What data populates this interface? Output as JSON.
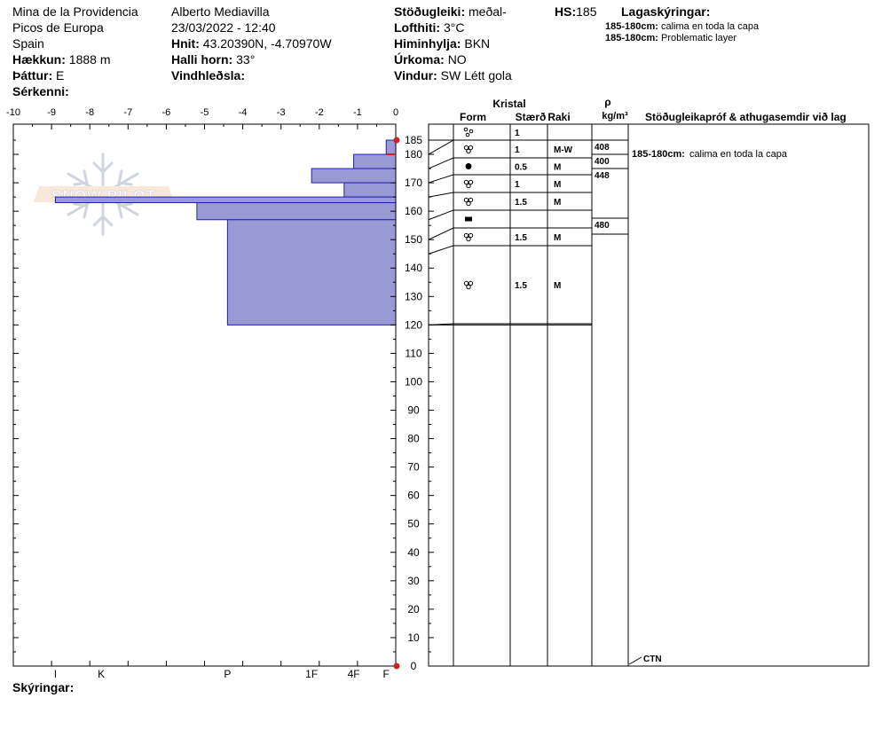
{
  "header": {
    "location": "Mina de la Providencia",
    "range": "Picos de Europa",
    "country": "Spain",
    "elevation_label": "Hækkun:",
    "elevation_value": "1888 m",
    "aspect_label": "Þáttur:",
    "aspect_value": "E",
    "features_label": "Sérkenni:",
    "observer": "Alberto Mediavilla",
    "datetime": "23/03/2022 - 12:40",
    "coords_label": "Hnit:",
    "coords_value": "43.20390N, -4.70970W",
    "slope_label": "Halli horn:",
    "slope_value": "33°",
    "wind_loading_label": "Vindhleðsla:",
    "stability_label": "Stöðugleiki:",
    "stability_value": "meðal-",
    "air_temp_label": "Lofthiti:",
    "air_temp_value": "3°C",
    "sky_label": "Himinhylja:",
    "sky_value": "BKN",
    "precip_label": "Úrkoma:",
    "precip_value": "NO",
    "wind_label": "Vindur:",
    "wind_value": "SW Létt gola",
    "hs_label": "HS:",
    "hs_value": "185",
    "layer_notes_title": "Lagaskýringar:",
    "layer_notes": [
      {
        "range": "185-180cm:",
        "text": "calima en toda la capa"
      },
      {
        "range": "185-180cm:",
        "text": "Problematic layer"
      }
    ]
  },
  "footer": {
    "comments_label": "Skýringar:"
  },
  "watermark": "SNOW PILOT",
  "table_headers": {
    "kristal": "Kristal",
    "form": "Form",
    "size": "Stærð",
    "moisture": "Raki",
    "rho": "ρ",
    "density_unit": "kg/m³",
    "tests": "Stöðugleikapróf & athugasemdir við lag"
  },
  "ctn_label": "CTN",
  "test_note": {
    "range": "185-180cm:",
    "text": "calima en toda la capa"
  },
  "chart_data": {
    "type": "bar",
    "temp_axis": {
      "ticks": [
        -10,
        -9,
        -8,
        -7,
        -6,
        -5,
        -4,
        -3,
        -2,
        -1,
        0
      ],
      "range": [
        -10,
        0
      ]
    },
    "height_axis": {
      "range": [
        0,
        185
      ],
      "ticks": [
        0,
        10,
        20,
        30,
        40,
        50,
        60,
        70,
        80,
        90,
        100,
        110,
        120,
        130,
        140,
        150,
        160,
        170,
        180,
        185
      ]
    },
    "hardness_axis": {
      "labels": [
        "I",
        "K",
        "P",
        "1F",
        "4F",
        "F"
      ],
      "values": [
        -8.9,
        -7.7,
        -4.4,
        -2.2,
        -1.1,
        -0.25
      ]
    },
    "hardness_profile": [
      {
        "top": 185,
        "bottom": 180,
        "value": -0.25
      },
      {
        "top": 180,
        "bottom": 175,
        "value": -1.1
      },
      {
        "top": 175,
        "bottom": 170,
        "value": -2.2
      },
      {
        "top": 170,
        "bottom": 165,
        "value": -1.35
      },
      {
        "top": 165,
        "bottom": 163,
        "value": -8.9
      },
      {
        "top": 163,
        "bottom": 157,
        "value": -5.2
      },
      {
        "top": 157,
        "bottom": 120,
        "value": -4.4
      }
    ],
    "layers": [
      {
        "top": 185,
        "bottom": 180,
        "form": "Precipitation Particles",
        "size": "1",
        "moisture": ""
      },
      {
        "top": 180,
        "bottom": 175,
        "form": "Decomposing fragments",
        "size": "1",
        "moisture": "M-W"
      },
      {
        "top": 175,
        "bottom": 170,
        "form": "Melt forms",
        "size": "0.5",
        "moisture": "M"
      },
      {
        "top": 170,
        "bottom": 165,
        "form": "Decomposing fragments",
        "size": "1",
        "moisture": "M"
      },
      {
        "top": 165,
        "bottom": 157,
        "form": "Decomposing fragments",
        "size": "1.5",
        "moisture": "M"
      },
      {
        "top": 157,
        "bottom": 150,
        "form": "Ice formation",
        "size": "",
        "moisture": ""
      },
      {
        "top": 150,
        "bottom": 145,
        "form": "Decomposing fragments",
        "size": "1.5",
        "moisture": "M"
      },
      {
        "top": 145,
        "bottom": 120,
        "form": "Decomposing fragments",
        "size": "1.5",
        "moisture": "M"
      }
    ],
    "densities": [
      {
        "top": 180,
        "bottom": 175,
        "value": "408"
      },
      {
        "top": 175,
        "bottom": 170,
        "value": "400"
      },
      {
        "top": 170,
        "bottom": 157,
        "value": "448"
      },
      {
        "top": 157,
        "bottom": 150,
        "value": "480"
      }
    ],
    "colors": {
      "bar": "#9999d6",
      "bar_stroke": "#2222aa",
      "temp_marker": "#cc2222"
    }
  }
}
